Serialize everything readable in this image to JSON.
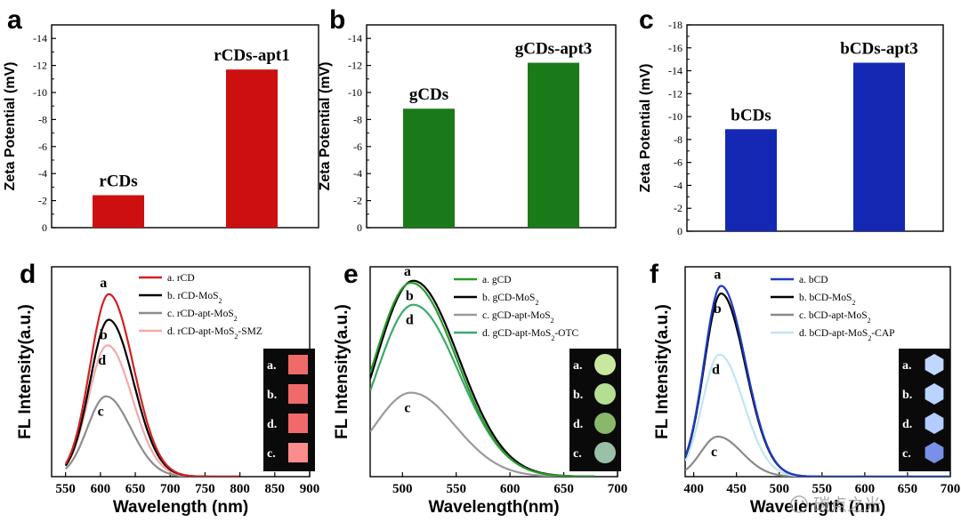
{
  "chart_data": [
    {
      "panel": "a",
      "type": "bar",
      "ylabel": "Zeta Potential (mV)",
      "categories": [
        "rCDs",
        "rCDs-apt1"
      ],
      "values": [
        2.4,
        11.7
      ],
      "ylim": [
        0,
        15
      ],
      "ytick_values": [
        0,
        2,
        4,
        6,
        8,
        10,
        12,
        14
      ],
      "ytick_labels": [
        "0",
        "-2",
        "-4",
        "-6",
        "-8",
        "-10",
        "-12",
        "-14"
      ],
      "color": "#cc1010"
    },
    {
      "panel": "b",
      "type": "bar",
      "ylabel": "Zeta Potential (mV)",
      "categories": [
        "gCDs",
        "gCDs-apt3"
      ],
      "values": [
        8.8,
        12.2
      ],
      "ylim": [
        0,
        15
      ],
      "ytick_values": [
        0,
        2,
        4,
        6,
        8,
        10,
        12,
        14
      ],
      "ytick_labels": [
        "0",
        "-2",
        "-4",
        "-6",
        "-8",
        "-10",
        "-12",
        "-14"
      ],
      "color": "#1a7a1a"
    },
    {
      "panel": "c",
      "type": "bar",
      "ylabel": "Zeta Potential (mV)",
      "categories": [
        "bCDs",
        "bCDs-apt3"
      ],
      "values": [
        8.9,
        14.7
      ],
      "ylim": [
        0,
        18
      ],
      "ytick_values": [
        0,
        2,
        4,
        6,
        8,
        10,
        12,
        14,
        16,
        18
      ],
      "ytick_labels": [
        "0",
        "-2",
        "-4",
        "-6",
        "-8",
        "-10",
        "-12",
        "-14",
        "-16",
        "-18"
      ],
      "color": "#1428b4"
    },
    {
      "panel": "d",
      "type": "line",
      "xlabel": "Wavelength (nm)",
      "ylabel": "FL Intensity(a.u.)",
      "xlim": [
        530,
        900
      ],
      "ylim": [
        0,
        1.15
      ],
      "xtick_values": [
        550,
        600,
        650,
        700,
        750,
        800,
        850,
        900
      ],
      "xtick_labels": [
        "550",
        "600",
        "650",
        "700",
        "750",
        "800",
        "850",
        "900"
      ],
      "series": [
        {
          "name": "a. rCD",
          "letter": "a",
          "color": "#d42020",
          "peak": 1.0,
          "center": 612,
          "width_left": 38,
          "width_right": 50,
          "start": 550,
          "end": 800
        },
        {
          "name": "b. rCD-MoS",
          "sub": "2",
          "letter": "b",
          "color": "#000000",
          "peak": 0.86,
          "center": 612,
          "width_left": 38,
          "width_right": 50,
          "start": 550,
          "end": 800
        },
        {
          "name": "c. rCD-apt-MoS",
          "sub": "2",
          "letter": "c",
          "color": "#8c8c8c",
          "peak": 0.44,
          "center": 608,
          "width_left": 38,
          "width_right": 50,
          "start": 550,
          "end": 800
        },
        {
          "name": "d. rCD-apt-MoS",
          "sub": "2",
          "suffix": "-SMZ",
          "letter": "d",
          "color": "#f2aaaa",
          "peak": 0.72,
          "center": 610,
          "width_left": 38,
          "width_right": 50,
          "start": 550,
          "end": 800
        }
      ],
      "inset_labels": [
        "a.",
        "b.",
        "d.",
        "c."
      ],
      "inset_colors": [
        "#f06a6a",
        "#f06a6a",
        "#f06a6a",
        "#ff8c8c"
      ]
    },
    {
      "panel": "e",
      "type": "line",
      "xlabel": "Wavelength(nm)",
      "ylabel": "FL Intensity(a.u.)",
      "xlim": [
        470,
        700
      ],
      "ylim": [
        0,
        1.05
      ],
      "xtick_values": [
        500,
        550,
        600,
        650,
        700
      ],
      "xtick_labels": [
        "500",
        "550",
        "600",
        "650",
        "700"
      ],
      "series": [
        {
          "name": "a. gCD",
          "letter": "a",
          "color": "#2a9a2a",
          "peak": 0.97,
          "center": 508,
          "width_left": 48,
          "width_right": 60,
          "start": 470,
          "end": 680
        },
        {
          "name": "b. gCD-MoS",
          "sub": "2",
          "letter": "b",
          "color": "#000000",
          "peak": 0.98,
          "center": 510,
          "width_left": 48,
          "width_right": 60,
          "start": 470,
          "end": 680
        },
        {
          "name": "c. gCD-apt-MoS",
          "sub": "2",
          "letter": "c",
          "color": "#9a9a9a",
          "peak": 0.42,
          "center": 508,
          "width_left": 48,
          "width_right": 58,
          "start": 470,
          "end": 680
        },
        {
          "name": "d. gCD-apt-MoS",
          "sub": "2",
          "suffix": "-OTC",
          "letter": "d",
          "color": "#3aaa6a",
          "peak": 0.86,
          "center": 510,
          "width_left": 48,
          "width_right": 60,
          "start": 470,
          "end": 680
        }
      ],
      "inset_labels": [
        "a.",
        "b.",
        "d.",
        "c."
      ],
      "inset_colors": [
        "#c8e8a0",
        "#b4de92",
        "#8ab86a",
        "#9ac0a8"
      ]
    },
    {
      "panel": "f",
      "type": "line",
      "xlabel": "Wavelength (nm)",
      "ylabel": "FL Intensity(a.u.)",
      "xlim": [
        390,
        700
      ],
      "ylim": [
        0,
        1.1
      ],
      "xtick_values": [
        400,
        450,
        500,
        550,
        600,
        650,
        700
      ],
      "xtick_labels": [
        "400",
        "450",
        "500",
        "550",
        "600",
        "650",
        "700"
      ],
      "series": [
        {
          "name": "a. bCD",
          "letter": "a",
          "color": "#1c3cc8",
          "peak": 1.0,
          "center": 432,
          "width_left": 28,
          "width_right": 40,
          "start": 390,
          "end": 700
        },
        {
          "name": "b. bCD-MoS",
          "sub": "2",
          "letter": "b",
          "color": "#000000",
          "peak": 0.96,
          "center": 432,
          "width_left": 28,
          "width_right": 40,
          "start": 390,
          "end": 700
        },
        {
          "name": "c. bCD-apt-MoS",
          "sub": "2",
          "letter": "c",
          "color": "#8a8a8a",
          "peak": 0.21,
          "center": 428,
          "width_left": 28,
          "width_right": 40,
          "start": 390,
          "end": 700
        },
        {
          "name": "d. bCD-apt-MoS",
          "sub": "2",
          "suffix": "-CAP",
          "letter": "d",
          "color": "#bfe6f2",
          "peak": 0.64,
          "center": 430,
          "width_left": 28,
          "width_right": 40,
          "start": 390,
          "end": 700
        }
      ],
      "inset_labels": [
        "a.",
        "b.",
        "d.",
        "c."
      ],
      "inset_colors": [
        "#c0d8ff",
        "#b8d4ff",
        "#b4ccff",
        "#7a90e8"
      ]
    }
  ],
  "watermark": {
    "text": "碳点之光"
  }
}
